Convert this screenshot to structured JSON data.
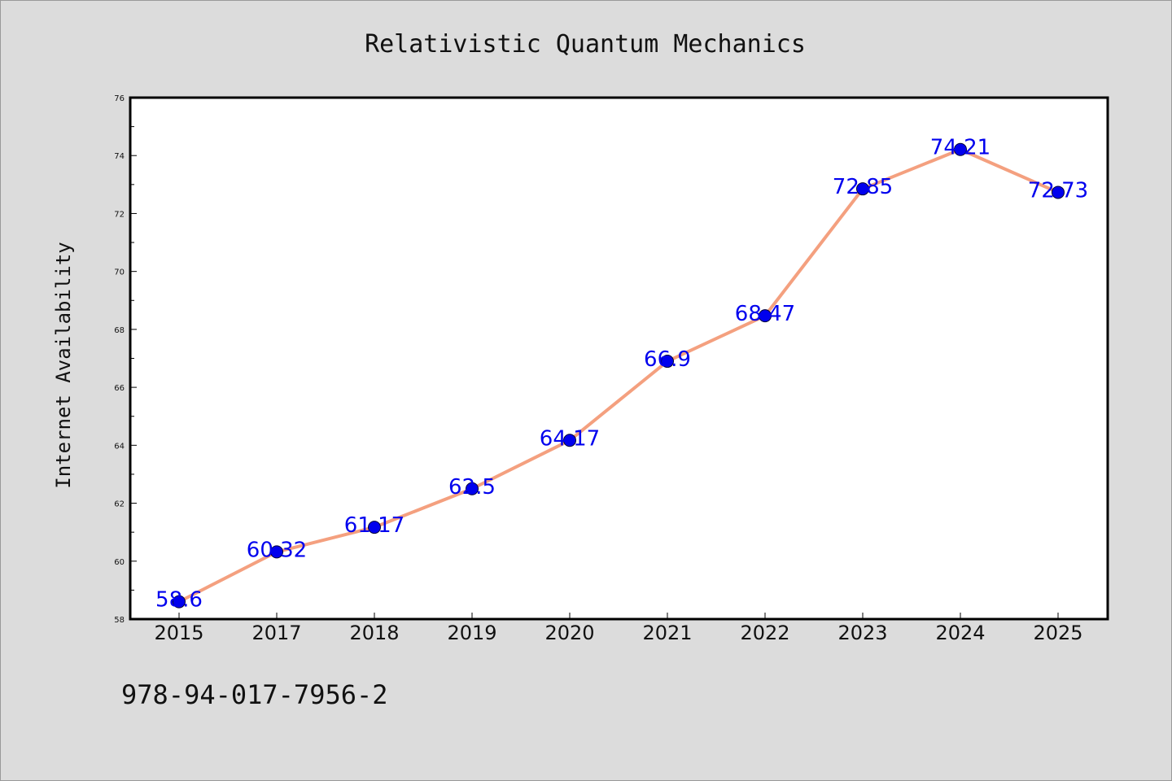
{
  "chart_data": {
    "type": "line",
    "title": "Relativistic Quantum Mechanics",
    "xlabel": "",
    "ylabel": "Internet Availability",
    "categories": [
      "2015",
      "2017",
      "2018",
      "2019",
      "2020",
      "2021",
      "2022",
      "2023",
      "2024",
      "2025"
    ],
    "values": [
      58.6,
      60.32,
      61.17,
      62.5,
      64.17,
      66.9,
      68.47,
      72.85,
      74.21,
      72.73
    ],
    "data_labels": [
      "58.6",
      "60.32",
      "61.17",
      "62.5",
      "64.17",
      "66.9",
      "68.47",
      "72.85",
      "74.21",
      "72.73"
    ],
    "ylim": [
      58,
      76
    ],
    "yticks": [
      "58",
      "60",
      "62",
      "64",
      "66",
      "68",
      "70",
      "72",
      "74",
      "76"
    ],
    "grid": false,
    "legend": "none",
    "colors": {
      "line": "#f4a07f",
      "marker": "#0000ee",
      "label": "#0000ee",
      "background": "#dcdcdc",
      "plot": "#ffffff"
    }
  },
  "footer": {
    "isbn": "978-94-017-7956-2"
  }
}
